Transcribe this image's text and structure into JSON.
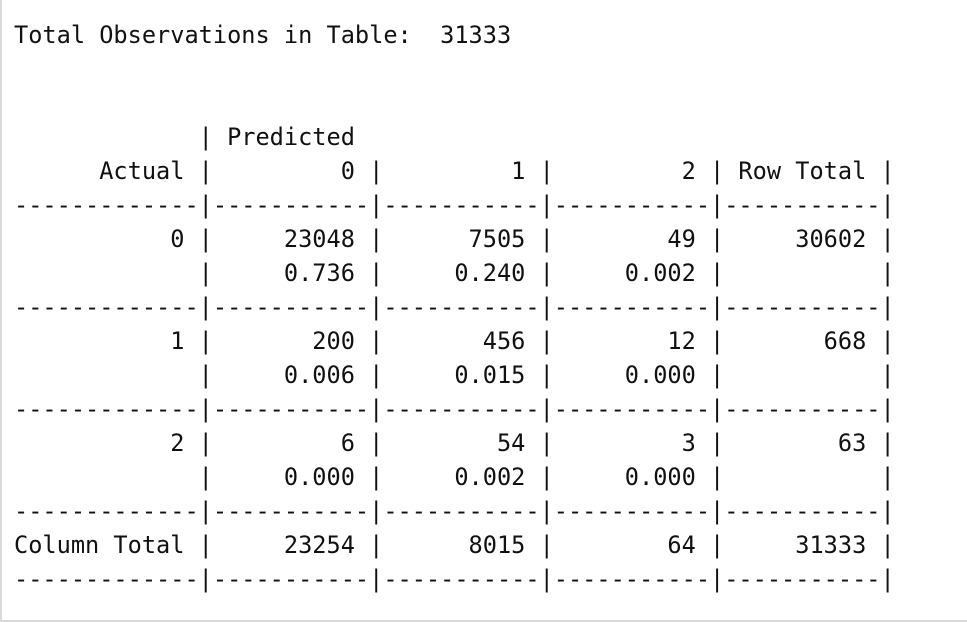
{
  "output": {
    "lines": [
      "Total Observations in Table:  31333",
      "",
      "",
      "             | Predicted",
      "      Actual |         0 |         1 |         2 | Row Total |",
      "-------------|-----------|-----------|-----------|-----------|",
      "           0 |     23048 |      7505 |        49 |     30602 |",
      "             |     0.736 |     0.240 |     0.002 |           |",
      "-------------|-----------|-----------|-----------|-----------|",
      "           1 |       200 |       456 |        12 |       668 |",
      "             |     0.006 |     0.015 |     0.000 |           |",
      "-------------|-----------|-----------|-----------|-----------|",
      "           2 |         6 |        54 |         3 |        63 |",
      "             |     0.000 |     0.002 |     0.000 |           |",
      "-------------|-----------|-----------|-----------|-----------|",
      "Column Total |     23254 |      8015 |        64 |     31333 |",
      "-------------|-----------|-----------|-----------|-----------|"
    ]
  }
}
